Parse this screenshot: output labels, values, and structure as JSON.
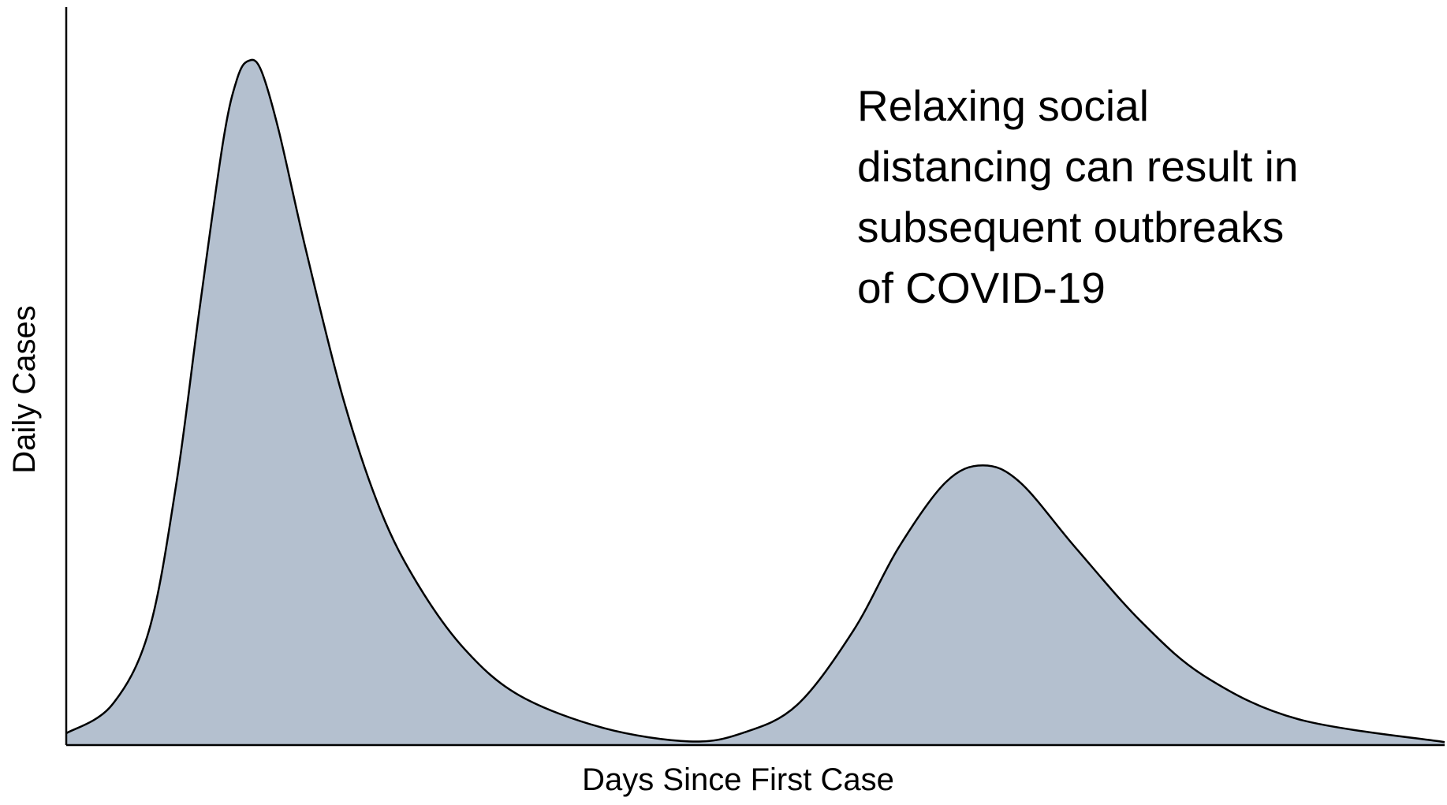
{
  "chart_data": {
    "type": "area",
    "x_label": "Days Since First Case",
    "y_label": "Daily Cases",
    "annotation": [
      "Relaxing social",
      "distancing can result in",
      "subsequent outbreaks",
      "of COVID-19"
    ],
    "color": "#b4c0cf",
    "xlim": [
      0,
      100
    ],
    "ylim": [
      0,
      100
    ],
    "x": [
      0,
      3.3,
      6.0,
      8.0,
      9.7,
      11.4,
      12.4,
      13.2,
      14.1,
      15.4,
      17.4,
      20.1,
      22.8,
      25.5,
      28.9,
      32.9,
      39,
      45.2,
      49,
      53,
      57.1,
      60.4,
      63.8,
      66.5,
      69.2,
      73.2,
      78,
      82.7,
      89.4,
      100
    ],
    "values": [
      1.6,
      5.4,
      15.5,
      35.6,
      59.5,
      82,
      90.3,
      92.7,
      91.6,
      83.4,
      67,
      46.9,
      31.8,
      21.8,
      13,
      6.7,
      2.3,
      0.5,
      1.6,
      5.4,
      15.5,
      26.8,
      35.6,
      37.9,
      35.6,
      26.8,
      16.7,
      9.2,
      3.5,
      0.4
    ]
  }
}
